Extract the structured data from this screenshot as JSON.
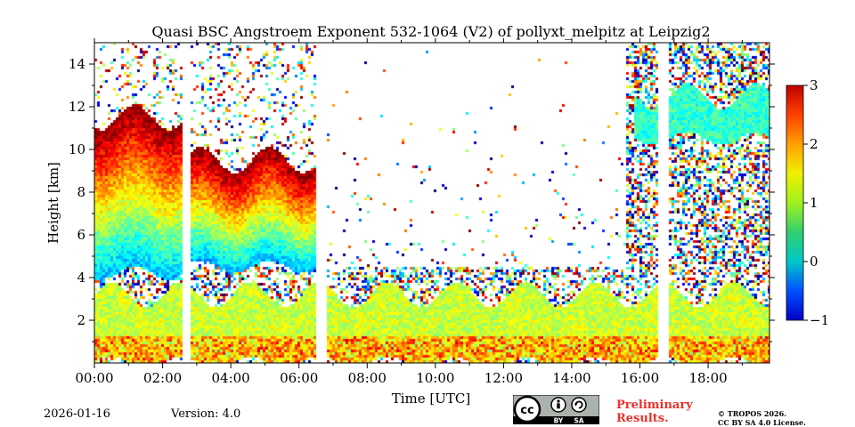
{
  "chart_data": {
    "type": "heatmap",
    "title": "Quasi BSC Angstroem Exponent 532-1064 (V2) of pollyxt_melpitz at Leipzig2",
    "xlabel": "Time [UTC]",
    "ylabel": "Height [km]",
    "xlim": [
      0,
      19.8
    ],
    "ylim": [
      0,
      15
    ],
    "xticks": [
      0,
      2,
      4,
      6,
      8,
      10,
      12,
      14,
      16,
      18
    ],
    "xtick_labels": [
      "00:00",
      "02:00",
      "04:00",
      "06:00",
      "08:00",
      "10:00",
      "12:00",
      "14:00",
      "16:00",
      "18:00"
    ],
    "yticks": [
      2,
      4,
      6,
      8,
      10,
      12,
      14
    ],
    "ytick_labels": [
      "2",
      "4",
      "6",
      "8",
      "10",
      "12",
      "14"
    ],
    "colorbar": {
      "min": -1,
      "max": 3,
      "ticks": [
        -1,
        0,
        1,
        2,
        3
      ],
      "tick_labels": [
        "−1",
        "0",
        "1",
        "2",
        "3"
      ],
      "colormap": "jet"
    },
    "data_gaps_hours": [
      [
        2.55,
        2.85
      ],
      [
        6.5,
        6.8
      ],
      [
        16.55,
        16.85
      ]
    ],
    "features": [
      {
        "name": "boundary-layer aerosol",
        "start_hour": 0,
        "end_hour": 19.8,
        "bottom_km": 0,
        "top_km": 3.2,
        "typical_value": 1.3
      },
      {
        "name": "elevated aerosol layer",
        "start_hour": 0,
        "end_hour": 2.55,
        "bottom_km": 4.2,
        "top_km": 11.5,
        "typical_value": 2.3
      },
      {
        "name": "elevated aerosol layer",
        "start_hour": 2.85,
        "end_hour": 6.5,
        "bottom_km": 4.5,
        "top_km": 9.5,
        "typical_value": 2.0
      },
      {
        "name": "cirrus cloud",
        "start_hour": 15.8,
        "end_hour": 19.8,
        "bottom_km": 10.5,
        "top_km": 12.5,
        "typical_value": 0.7
      }
    ]
  },
  "footer": {
    "date": "2026-01-16",
    "version": "Version: 4.0",
    "license_symbols": [
      "BY",
      "SA"
    ],
    "preliminary_line1": "Preliminary",
    "preliminary_line2": "Results.",
    "copyright_line1": "© TROPOS 2026.",
    "copyright_line2": "CC BY SA 4.0 License."
  },
  "colors": {
    "preliminary": "#e8322c",
    "badge_bg": "#aab2ab",
    "badge_dark": "#000000"
  }
}
